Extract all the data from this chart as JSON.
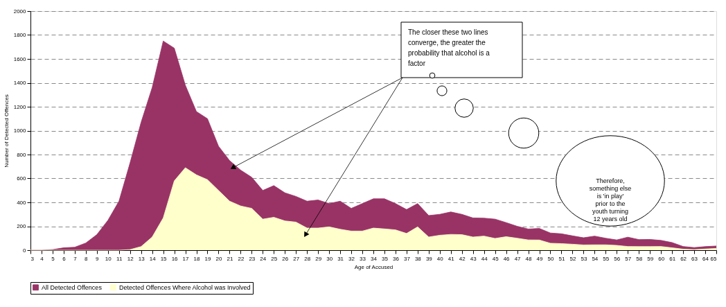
{
  "chart_data": {
    "type": "area",
    "xlabel": "Age of Accused",
    "ylabel": "Number of Detected Offences",
    "x": [
      3,
      4,
      5,
      6,
      7,
      8,
      9,
      10,
      11,
      12,
      13,
      14,
      15,
      16,
      17,
      18,
      19,
      20,
      21,
      22,
      23,
      24,
      25,
      26,
      27,
      28,
      29,
      30,
      31,
      32,
      33,
      34,
      35,
      36,
      37,
      38,
      39,
      40,
      41,
      42,
      43,
      44,
      45,
      46,
      47,
      48,
      49,
      50,
      51,
      52,
      53,
      54,
      55,
      56,
      57,
      58,
      59,
      60,
      61,
      62,
      63,
      64,
      65
    ],
    "series": [
      {
        "name": "All Detected Offences",
        "color": "#993366",
        "values": [
          0,
          0,
          5,
          20,
          25,
          60,
          130,
          250,
          410,
          730,
          1070,
          1360,
          1750,
          1690,
          1380,
          1160,
          1100,
          870,
          750,
          670,
          610,
          500,
          540,
          480,
          450,
          410,
          420,
          390,
          410,
          350,
          390,
          430,
          430,
          390,
          340,
          390,
          290,
          300,
          320,
          300,
          270,
          268,
          260,
          231,
          200,
          177,
          182,
          144,
          137,
          120,
          104,
          118,
          100,
          86,
          109,
          89,
          90,
          82,
          64,
          31,
          22,
          30,
          35
        ]
      },
      {
        "name": "Detected Offences Where Alcohol was Involved",
        "color": "#ffffcc",
        "values": [
          0,
          0,
          0,
          0,
          0,
          0,
          0,
          0,
          0,
          5,
          30,
          110,
          270,
          580,
          690,
          630,
          590,
          500,
          410,
          370,
          350,
          260,
          275,
          245,
          235,
          185,
          185,
          195,
          175,
          160,
          160,
          185,
          178,
          170,
          140,
          195,
          110,
          125,
          132,
          130,
          110,
          118,
          98,
          113,
          100,
          86,
          85,
          58,
          55,
          50,
          44,
          45,
          45,
          40,
          31,
          30,
          30,
          31,
          20,
          9,
          5,
          10,
          15
        ]
      }
    ],
    "xlim": [
      3,
      65
    ],
    "xticks": [
      3,
      4,
      5,
      6,
      7,
      8,
      9,
      10,
      11,
      12,
      13,
      14,
      15,
      16,
      17,
      18,
      19,
      20,
      21,
      22,
      23,
      24,
      25,
      26,
      27,
      28,
      29,
      30,
      31,
      32,
      33,
      34,
      35,
      36,
      37,
      38,
      39,
      40,
      41,
      42,
      43,
      44,
      45,
      46,
      47,
      48,
      49,
      50,
      51,
      52,
      53,
      54,
      55,
      56,
      57,
      58,
      59,
      60,
      61,
      62,
      63,
      64,
      65
    ],
    "ylim": [
      0,
      2000
    ],
    "yticks": [
      0,
      200,
      400,
      600,
      800,
      1000,
      1200,
      1400,
      1600,
      1800,
      2000
    ],
    "grid": "y",
    "legend": "bottom",
    "annotations": [
      "The closer these two lines converge, the greater the probability that alcohol is a factor",
      "Therefore, something else is 'in play' prior to the youth turning 12 years old"
    ]
  }
}
